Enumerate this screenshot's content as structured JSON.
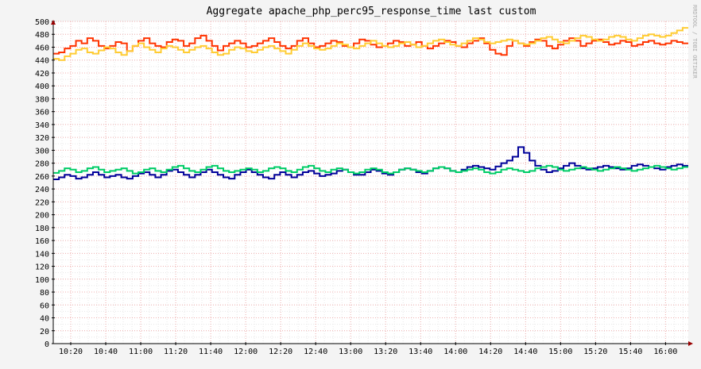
{
  "watermark": "RRDTOOL / TOBI OETIKER",
  "chart_data": {
    "type": "line",
    "title": "Aggregate apache_php_perc95_response_time last custom",
    "xlabel": "",
    "ylabel": "",
    "ylim": [
      0,
      500
    ],
    "y_ticks": [
      0,
      20,
      40,
      60,
      80,
      100,
      120,
      140,
      160,
      180,
      200,
      220,
      240,
      260,
      280,
      300,
      320,
      340,
      360,
      380,
      400,
      420,
      440,
      460,
      480,
      500
    ],
    "x_ticks": [
      "10:20",
      "10:40",
      "11:00",
      "11:20",
      "11:40",
      "12:00",
      "12:20",
      "12:40",
      "13:00",
      "13:20",
      "13:40",
      "14:00",
      "14:20",
      "14:40",
      "15:00",
      "15:20",
      "15:40",
      "16:00"
    ],
    "x_range": [
      "10:10",
      "16:13"
    ],
    "grid": true,
    "legend": "none",
    "series": [
      {
        "color": "#ff3300",
        "values": [
          450,
          452,
          458,
          462,
          470,
          466,
          474,
          470,
          462,
          458,
          462,
          468,
          466,
          454,
          462,
          470,
          474,
          466,
          462,
          460,
          468,
          472,
          470,
          462,
          466,
          474,
          478,
          470,
          462,
          455,
          462,
          466,
          470,
          466,
          460,
          462,
          466,
          470,
          474,
          468,
          462,
          458,
          462,
          470,
          474,
          466,
          460,
          462,
          466,
          470,
          468,
          462,
          460,
          466,
          472,
          470,
          464,
          460,
          462,
          466,
          470,
          468,
          462,
          464,
          468,
          462,
          458,
          462,
          466,
          470,
          468,
          462,
          460,
          466,
          470,
          474,
          466,
          456,
          450,
          448,
          462,
          470,
          466,
          462,
          468,
          472,
          470,
          462,
          458,
          464,
          470,
          474,
          470,
          462,
          466,
          470,
          472,
          468,
          464,
          466,
          470,
          468,
          462,
          464,
          468,
          470,
          466,
          464,
          466,
          470,
          468,
          466
        ]
      },
      {
        "color": "#ffcc33",
        "values": [
          442,
          440,
          446,
          450,
          456,
          458,
          452,
          450,
          455,
          460,
          458,
          452,
          448,
          454,
          462,
          466,
          460,
          456,
          452,
          458,
          462,
          460,
          456,
          452,
          456,
          460,
          462,
          458,
          452,
          448,
          450,
          456,
          460,
          458,
          454,
          452,
          456,
          460,
          462,
          458,
          454,
          450,
          456,
          462,
          466,
          462,
          458,
          456,
          458,
          462,
          466,
          464,
          460,
          458,
          462,
          466,
          470,
          466,
          462,
          460,
          462,
          466,
          468,
          464,
          460,
          462,
          466,
          470,
          472,
          468,
          464,
          462,
          466,
          470,
          474,
          472,
          468,
          466,
          468,
          470,
          472,
          470,
          466,
          464,
          466,
          470,
          474,
          476,
          472,
          468,
          466,
          470,
          474,
          478,
          476,
          472,
          470,
          472,
          476,
          478,
          476,
          472,
          470,
          474,
          478,
          480,
          478,
          476,
          478,
          482,
          486,
          490
        ]
      },
      {
        "color": "#000099",
        "values": [
          255,
          258,
          262,
          260,
          256,
          258,
          262,
          266,
          262,
          258,
          260,
          262,
          258,
          256,
          260,
          264,
          266,
          262,
          258,
          262,
          268,
          270,
          266,
          262,
          258,
          262,
          266,
          270,
          266,
          262,
          258,
          256,
          262,
          266,
          270,
          266,
          262,
          258,
          256,
          262,
          266,
          262,
          258,
          262,
          266,
          268,
          264,
          260,
          262,
          264,
          268,
          270,
          266,
          262,
          262,
          266,
          270,
          268,
          264,
          262,
          266,
          270,
          272,
          270,
          266,
          264,
          268,
          272,
          274,
          272,
          268,
          266,
          270,
          274,
          276,
          274,
          272,
          270,
          275,
          280,
          284,
          290,
          305,
          296,
          284,
          276,
          270,
          266,
          268,
          272,
          276,
          280,
          276,
          272,
          270,
          272,
          274,
          276,
          274,
          272,
          270,
          272,
          276,
          278,
          276,
          274,
          272,
          270,
          274,
          276,
          278,
          276
        ]
      },
      {
        "color": "#00cc66",
        "values": [
          265,
          268,
          272,
          270,
          266,
          268,
          272,
          274,
          270,
          266,
          268,
          270,
          272,
          268,
          264,
          266,
          270,
          272,
          268,
          266,
          270,
          274,
          276,
          272,
          268,
          266,
          270,
          274,
          276,
          272,
          268,
          266,
          268,
          270,
          272,
          270,
          266,
          268,
          272,
          274,
          272,
          268,
          266,
          270,
          274,
          276,
          272,
          268,
          266,
          270,
          272,
          270,
          266,
          264,
          266,
          270,
          272,
          270,
          266,
          264,
          266,
          270,
          272,
          270,
          268,
          266,
          268,
          272,
          274,
          272,
          268,
          266,
          268,
          270,
          272,
          270,
          266,
          264,
          266,
          270,
          272,
          270,
          268,
          266,
          268,
          272,
          274,
          276,
          274,
          270,
          268,
          270,
          272,
          274,
          272,
          270,
          268,
          270,
          272,
          274,
          272,
          270,
          268,
          270,
          272,
          274,
          276,
          274,
          272,
          270,
          272,
          274
        ]
      }
    ]
  }
}
